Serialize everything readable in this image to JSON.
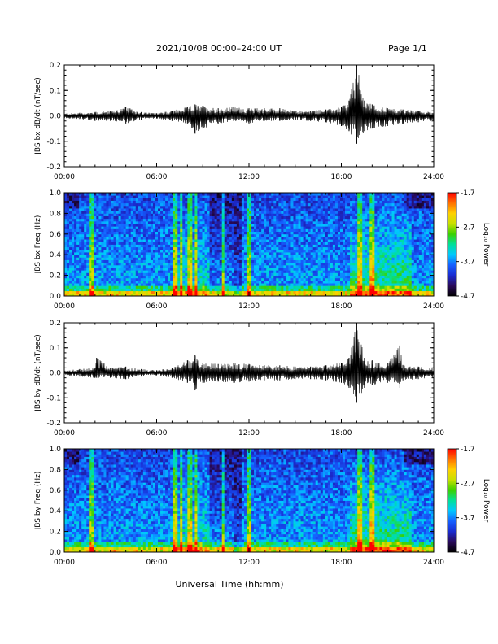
{
  "header": {
    "title": "2021/10/08  00:00–24:00 UT",
    "page": "Page 1/1"
  },
  "footer": {
    "xlabel": "Universal Time (hh:mm)"
  },
  "colorscale": {
    "name": "rainbow",
    "stops": [
      "#000000",
      "#2a0a5a",
      "#1a2bd0",
      "#1560ff",
      "#00c8ff",
      "#00e09a",
      "#3ad000",
      "#c8e000",
      "#ffd000",
      "#ff7000",
      "#ff0000"
    ]
  },
  "chart_data": [
    {
      "type": "line",
      "title": "",
      "xlabel": "",
      "ylabel": "JBS bx dB/dt (nT/sec)",
      "xlim": [
        0,
        24
      ],
      "ylim": [
        -0.2,
        0.2
      ],
      "xticks": [
        "00:00",
        "06:00",
        "12:00",
        "18:00",
        "24:00"
      ],
      "yticks": [
        "-0.2",
        "-0.1",
        "0.0",
        "0.1",
        "0.2"
      ],
      "x_hours": [
        0,
        1,
        2,
        3,
        4,
        5,
        6,
        7,
        8,
        8.5,
        9,
        10,
        11,
        12,
        13,
        14,
        15,
        16,
        17,
        18,
        18.5,
        19,
        19.5,
        20,
        21,
        22,
        23,
        24
      ],
      "y_max": [
        0.01,
        0.012,
        0.015,
        0.02,
        0.035,
        0.015,
        0.01,
        0.02,
        0.035,
        0.045,
        0.04,
        0.03,
        0.035,
        0.03,
        0.03,
        0.03,
        0.02,
        0.02,
        0.025,
        0.035,
        0.06,
        0.2,
        0.06,
        0.045,
        0.03,
        0.025,
        0.02,
        0.015
      ],
      "y_min": [
        -0.01,
        -0.012,
        -0.02,
        -0.02,
        -0.03,
        -0.015,
        -0.01,
        -0.02,
        -0.03,
        -0.07,
        -0.05,
        -0.03,
        -0.02,
        -0.03,
        -0.02,
        -0.02,
        -0.015,
        -0.02,
        -0.025,
        -0.04,
        -0.06,
        -0.11,
        -0.06,
        -0.05,
        -0.04,
        -0.03,
        -0.025,
        -0.02
      ]
    },
    {
      "type": "heatmap",
      "title": "",
      "xlabel": "",
      "ylabel": "JBS bx Freq (Hz)",
      "xlim": [
        0,
        24
      ],
      "ylim": [
        0.0,
        1.0
      ],
      "xticks": [
        "00:00",
        "06:00",
        "12:00",
        "18:00",
        "24:00"
      ],
      "yticks": [
        "0.0",
        "0.2",
        "0.4",
        "0.6",
        "0.8",
        "1.0"
      ],
      "colorbar": {
        "label": "Log₁₀ Power",
        "range": [
          -4.7,
          -1.7
        ],
        "ticks": [
          "-1.7",
          "-2.7",
          "-3.7",
          "-4.7"
        ]
      },
      "bright_times_hours": [
        1.8,
        7.2,
        7.6,
        8.2,
        8.6,
        10.3,
        12.0,
        19.1,
        19.3,
        20.0
      ]
    },
    {
      "type": "line",
      "title": "",
      "xlabel": "",
      "ylabel": "JBS by dB/dt (nT/sec)",
      "xlim": [
        0,
        24
      ],
      "ylim": [
        -0.2,
        0.2
      ],
      "xticks": [
        "00:00",
        "06:00",
        "12:00",
        "18:00",
        "24:00"
      ],
      "yticks": [
        "-0.2",
        "-0.1",
        "0.0",
        "0.1",
        "0.2"
      ],
      "x_hours": [
        0,
        1,
        2,
        2.1,
        3,
        4,
        5,
        6,
        7,
        8,
        8.5,
        9,
        10,
        11,
        12,
        13,
        14,
        15,
        16,
        17,
        18,
        18.5,
        19,
        19.5,
        20,
        21,
        21.8,
        22,
        23,
        24
      ],
      "y_max": [
        0.01,
        0.015,
        0.02,
        0.06,
        0.02,
        0.025,
        0.015,
        0.01,
        0.02,
        0.05,
        0.07,
        0.04,
        0.035,
        0.04,
        0.035,
        0.03,
        0.03,
        0.025,
        0.025,
        0.03,
        0.04,
        0.06,
        0.2,
        0.06,
        0.05,
        0.04,
        0.11,
        0.03,
        0.025,
        0.02
      ],
      "y_min": [
        -0.01,
        -0.015,
        -0.02,
        -0.02,
        -0.02,
        -0.025,
        -0.015,
        -0.01,
        -0.02,
        -0.04,
        -0.07,
        -0.04,
        -0.035,
        -0.04,
        -0.035,
        -0.03,
        -0.03,
        -0.025,
        -0.025,
        -0.03,
        -0.04,
        -0.06,
        -0.12,
        -0.06,
        -0.05,
        -0.04,
        -0.06,
        -0.03,
        -0.025,
        -0.02
      ]
    },
    {
      "type": "heatmap",
      "title": "",
      "xlabel": "",
      "ylabel": "JBS by Freq (Hz)",
      "xlim": [
        0,
        24
      ],
      "ylim": [
        0.0,
        1.0
      ],
      "xticks": [
        "00:00",
        "06:00",
        "12:00",
        "18:00",
        "24:00"
      ],
      "yticks": [
        "0.0",
        "0.2",
        "0.4",
        "0.6",
        "0.8",
        "1.0"
      ],
      "colorbar": {
        "label": "Log₁₀ Power",
        "range": [
          -4.7,
          -1.7
        ],
        "ticks": [
          "-1.7",
          "-2.7",
          "-3.7",
          "-4.7"
        ]
      },
      "bright_times_hours": [
        1.8,
        7.2,
        7.6,
        8.2,
        8.6,
        10.3,
        12.0,
        19.1,
        19.3,
        20.0
      ]
    }
  ]
}
